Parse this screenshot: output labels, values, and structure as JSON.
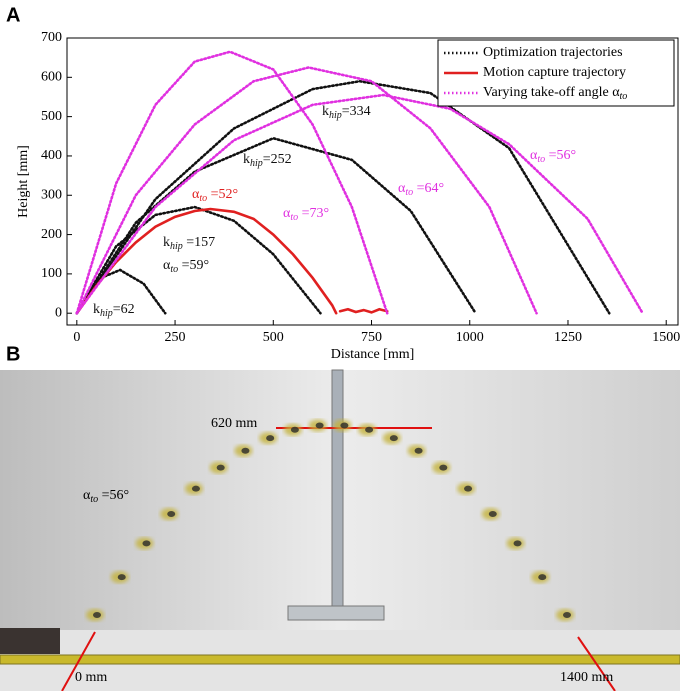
{
  "panel_labels": [
    "A",
    "B"
  ],
  "chart_data": {
    "type": "line",
    "xlabel": "Distance [mm]",
    "ylabel": "Height [mm]",
    "xlim": [
      -25,
      1530
    ],
    "ylim": [
      -30,
      700
    ],
    "xticks": [
      0,
      250,
      500,
      750,
      1000,
      1250,
      1500
    ],
    "yticks": [
      0,
      100,
      200,
      300,
      400,
      500,
      600,
      700
    ],
    "legend": "upper right",
    "series": [
      {
        "name": "Optimization trajectories",
        "color": "#111111",
        "style": "dotted",
        "x": [
          0,
          200,
          400,
          600,
          720,
          900,
          1100,
          1355
        ],
        "values": [
          0,
          290,
          470,
          570,
          590,
          560,
          420,
          0
        ]
      },
      {
        "color": "#111111",
        "style": "dotted",
        "x": [
          0,
          150,
          300,
          500,
          700,
          850,
          1015
        ],
        "values": [
          0,
          230,
          360,
          445,
          390,
          260,
          0
        ]
      },
      {
        "color": "#111111",
        "style": "dotted",
        "x": [
          0,
          100,
          200,
          300,
          400,
          500,
          620
        ],
        "values": [
          0,
          170,
          250,
          270,
          235,
          150,
          0
        ]
      },
      {
        "color": "#111111",
        "style": "dotted",
        "x": [
          0,
          50,
          110,
          170,
          225
        ],
        "values": [
          0,
          85,
          110,
          75,
          0
        ]
      },
      {
        "name": "Motion capture trajectory",
        "color": "#e02020",
        "style": "solid",
        "x": [
          0,
          50,
          100,
          150,
          200,
          250,
          300,
          340,
          400,
          450,
          500,
          550,
          600,
          650,
          660,
          665,
          670,
          690,
          710,
          730,
          750,
          770,
          790
        ],
        "values": [
          0,
          70,
          130,
          180,
          220,
          245,
          260,
          265,
          258,
          240,
          200,
          150,
          90,
          20,
          0,
          null,
          5,
          10,
          3,
          8,
          2,
          10,
          5
        ]
      },
      {
        "name": "Varying take-off angle α_to",
        "color": "#e030e0",
        "style": "dotted",
        "x": [
          0,
          100,
          200,
          300,
          390,
          500,
          600,
          700,
          790
        ],
        "values": [
          0,
          330,
          530,
          640,
          665,
          620,
          480,
          270,
          0
        ]
      },
      {
        "color": "#e030e0",
        "style": "dotted",
        "x": [
          0,
          150,
          300,
          450,
          590,
          750,
          900,
          1050,
          1170
        ],
        "values": [
          0,
          300,
          480,
          590,
          625,
          590,
          470,
          270,
          0
        ]
      },
      {
        "color": "#e030e0",
        "style": "dotted",
        "x": [
          0,
          200,
          400,
          600,
          780,
          950,
          1100,
          1300,
          1440
        ],
        "values": [
          0,
          270,
          440,
          530,
          555,
          520,
          430,
          240,
          0
        ]
      }
    ],
    "annotations": [
      {
        "text": "k_hip=62",
        "color": "#111111"
      },
      {
        "text": "k_hip =157",
        "color": "#111111"
      },
      {
        "text": "α_to =59°",
        "color": "#111111"
      },
      {
        "text": "k_hip=252",
        "color": "#111111"
      },
      {
        "text": "k_hip=334",
        "color": "#111111"
      },
      {
        "text": "α_to =52°",
        "color": "#e02020"
      },
      {
        "text": "α_to =73°",
        "color": "#e030e0"
      },
      {
        "text": "α_to =64°",
        "color": "#e030e0"
      },
      {
        "text": "α_to =56°",
        "color": "#e030e0"
      }
    ]
  },
  "photo": {
    "labels": [
      "620 mm",
      "0 mm",
      "1400 mm",
      "α_to =56°"
    ]
  }
}
